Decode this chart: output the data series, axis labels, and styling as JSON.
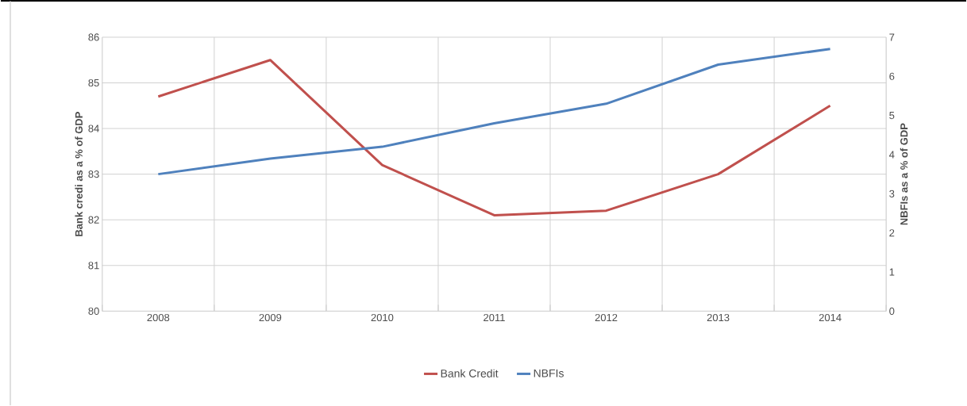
{
  "chart_data": {
    "type": "line",
    "categories": [
      "2008",
      "2009",
      "2010",
      "2011",
      "2012",
      "2013",
      "2014"
    ],
    "series": [
      {
        "name": "Bank Credit",
        "color": "#c0504d",
        "values": [
          84.7,
          85.5,
          83.2,
          82.1,
          82.2,
          83.0,
          84.5
        ]
      },
      {
        "name": "NBFIs",
        "color": "#4f81bd",
        "axis": "y2",
        "values": [
          3.5,
          3.9,
          4.2,
          4.8,
          5.3,
          6.3,
          6.7
        ]
      }
    ],
    "ylabel": "Bank credi as a % of GDP",
    "y2label": "NBFIs as a % of GDP",
    "ylim": [
      80,
      86
    ],
    "yticks": [
      80,
      81,
      82,
      83,
      84,
      85,
      86
    ],
    "y2lim": [
      0,
      7
    ],
    "y2ticks": [
      0,
      1,
      2,
      3,
      4,
      5,
      6,
      7
    ],
    "grid": true,
    "legend": "bottom",
    "marker": "none",
    "line_style": "solid"
  }
}
